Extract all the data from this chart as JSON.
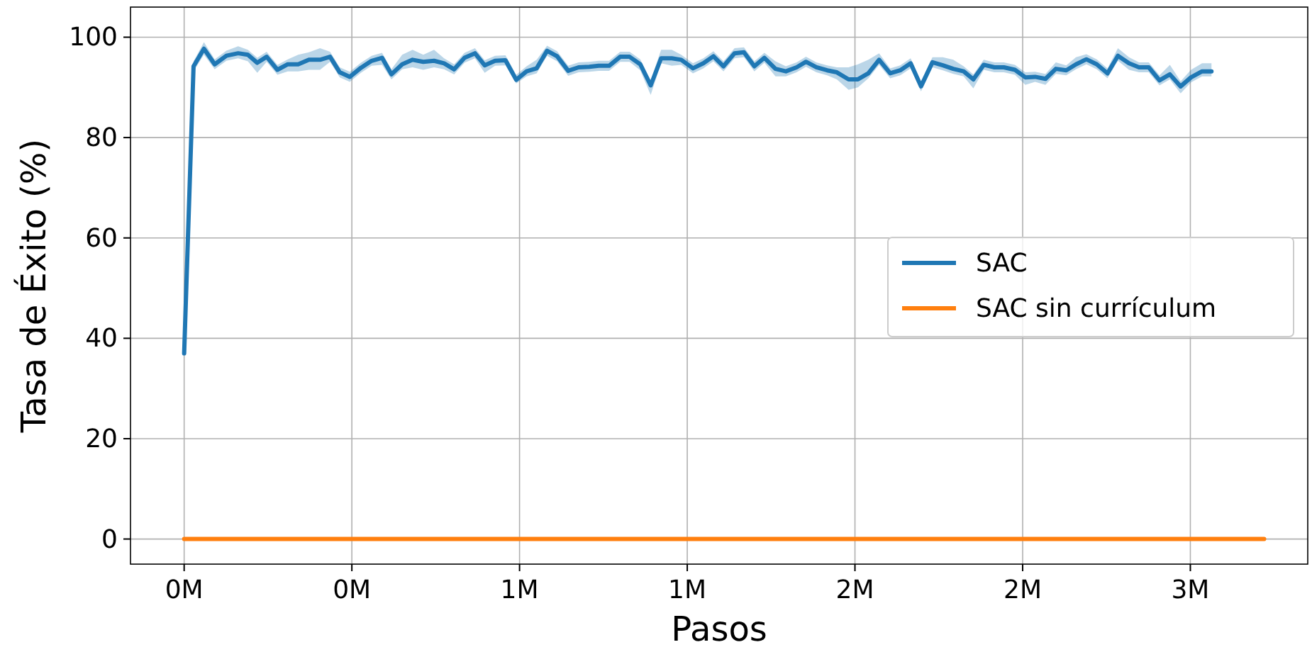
{
  "chart_data": {
    "type": "line",
    "xlabel": "Pasos",
    "ylabel": "Tasa de Éxito (%)",
    "xlim": [
      -0.16,
      3.35
    ],
    "xticks": [
      {
        "value": 0,
        "label": "0M"
      },
      {
        "value": 0.5,
        "label": "0M"
      },
      {
        "value": 1,
        "label": "1M"
      },
      {
        "value": 1.5,
        "label": "1M"
      },
      {
        "value": 2,
        "label": "2M"
      },
      {
        "value": 2.5,
        "label": "2M"
      },
      {
        "value": 3,
        "label": "3M"
      }
    ],
    "ylim": [
      -5,
      106
    ],
    "yticks": [
      0,
      20,
      40,
      60,
      80,
      100
    ],
    "grid": true,
    "legend": "right",
    "line_style": "solid",
    "marker": "none",
    "series": [
      {
        "name": "SAC",
        "color": "#1f77b4",
        "x": [
          0,
          0.028,
          0.059,
          0.091,
          0.126,
          0.161,
          0.19,
          0.218,
          0.246,
          0.278,
          0.309,
          0.34,
          0.372,
          0.405,
          0.435,
          0.464,
          0.494,
          0.527,
          0.559,
          0.59,
          0.618,
          0.65,
          0.681,
          0.713,
          0.745,
          0.775,
          0.805,
          0.836,
          0.867,
          0.896,
          0.927,
          0.958,
          0.99,
          1.021,
          1.051,
          1.082,
          1.112,
          1.145,
          1.176,
          1.208,
          1.236,
          1.267,
          1.3,
          1.328,
          1.36,
          1.391,
          1.422,
          1.454,
          1.482,
          1.517,
          1.548,
          1.578,
          1.608,
          1.641,
          1.669,
          1.7,
          1.73,
          1.763,
          1.794,
          1.826,
          1.854,
          1.885,
          1.917,
          1.946,
          1.981,
          2.009,
          2.04,
          2.072,
          2.105,
          2.135,
          2.166,
          2.197,
          2.231,
          2.262,
          2.293,
          2.324,
          2.353,
          2.384,
          2.416,
          2.444,
          2.477,
          2.508,
          2.537,
          2.568,
          2.599,
          2.63,
          2.659,
          2.69,
          2.721,
          2.753,
          2.784,
          2.817,
          2.847,
          2.876,
          2.908,
          2.939,
          2.971,
          3.002,
          3.035,
          3.063
        ],
        "values": [
          37,
          94.2,
          97.7,
          94.6,
          96.3,
          96.8,
          96.5,
          94.9,
          96.1,
          93.5,
          94.6,
          94.6,
          95.5,
          95.5,
          96.1,
          93,
          92.1,
          93.9,
          95.3,
          95.9,
          92.6,
          94.6,
          95.5,
          95.1,
          95.3,
          94.8,
          93.6,
          95.9,
          96.8,
          94.4,
          95.3,
          95.4,
          91.5,
          93.2,
          93.8,
          97.3,
          96.2,
          93.3,
          94,
          94.1,
          94.3,
          94.3,
          96.1,
          96.1,
          94.6,
          90.4,
          95.8,
          95.8,
          95.5,
          93.8,
          94.8,
          96.2,
          94.2,
          96.8,
          97,
          94.2,
          95.9,
          93.7,
          93.2,
          94,
          95.1,
          94,
          93.4,
          93,
          91.6,
          91.6,
          92.8,
          95.5,
          92.8,
          93.4,
          94.8,
          90.2,
          95,
          94.4,
          93.7,
          93.2,
          91.6,
          94.5,
          94,
          94,
          93.5,
          92,
          92.1,
          91.7,
          93.7,
          93.4,
          94.6,
          95.6,
          94.6,
          92.8,
          96.3,
          94.8,
          94,
          94,
          91.4,
          92.6,
          90.2,
          92,
          93.2,
          93.2
        ],
        "lower": [
          36,
          93.2,
          96.5,
          93.6,
          95.3,
          95.8,
          95.2,
          92.9,
          95.1,
          92.5,
          93.2,
          93.2,
          93.5,
          93.5,
          95.1,
          92,
          91.1,
          92.9,
          94.3,
          94.5,
          91.6,
          93.6,
          94,
          93.5,
          94,
          93.6,
          92.6,
          94.9,
          95.8,
          92.9,
          94.3,
          94.4,
          90.8,
          92.2,
          92.8,
          96.3,
          95.2,
          92.3,
          93,
          93.1,
          93.3,
          93.3,
          95.1,
          95.1,
          93.4,
          88.5,
          94.8,
          94.3,
          94.5,
          92.8,
          93.8,
          95.2,
          93.2,
          95.8,
          96,
          93.2,
          94.9,
          92.2,
          92.2,
          93,
          94.1,
          93,
          92.4,
          91.6,
          89.5,
          90,
          91.8,
          94.5,
          91.8,
          92.4,
          93.8,
          89.2,
          94,
          93.4,
          92.7,
          92.2,
          89.8,
          93.5,
          93,
          93,
          92.5,
          90.5,
          91.1,
          90.5,
          92.7,
          92.4,
          93.6,
          94.6,
          93.6,
          91.8,
          95.3,
          93.5,
          93,
          93,
          90.4,
          91.6,
          88.8,
          91,
          92.2,
          92.2
        ],
        "upper": [
          38,
          95.2,
          99,
          95.6,
          97.3,
          98.2,
          97.5,
          95.9,
          97.1,
          94.5,
          95.6,
          96.5,
          97,
          97.8,
          97.1,
          94,
          93.1,
          94.9,
          96.3,
          96.9,
          93.6,
          96.5,
          97.5,
          96.5,
          97.5,
          95.8,
          94.6,
          96.9,
          97.8,
          95.4,
          96.3,
          96.4,
          92.5,
          94.2,
          95.5,
          98.3,
          97.2,
          94.3,
          95,
          95.1,
          95.3,
          95.3,
          97.1,
          97.1,
          95.6,
          91.4,
          97.5,
          97.5,
          96.5,
          94.8,
          95.8,
          97.2,
          95.2,
          97.8,
          98,
          95.2,
          96.9,
          95.2,
          94.2,
          95,
          96.1,
          95,
          94.4,
          94,
          94,
          94.6,
          95.5,
          96.8,
          93.8,
          94.4,
          95.8,
          91.2,
          96,
          96,
          95.5,
          94.2,
          92.6,
          95.5,
          95,
          95,
          94.5,
          93,
          93.1,
          92.7,
          95,
          94.4,
          96,
          96.6,
          95.6,
          93.8,
          97.8,
          96,
          95,
          95,
          92.4,
          94.5,
          91.2,
          93.5,
          94.8,
          94.8
        ]
      },
      {
        "name": "SAC sin currículum",
        "color": "#ff7f0e",
        "x": [
          0,
          3.22
        ],
        "values": [
          0,
          0
        ]
      }
    ]
  }
}
